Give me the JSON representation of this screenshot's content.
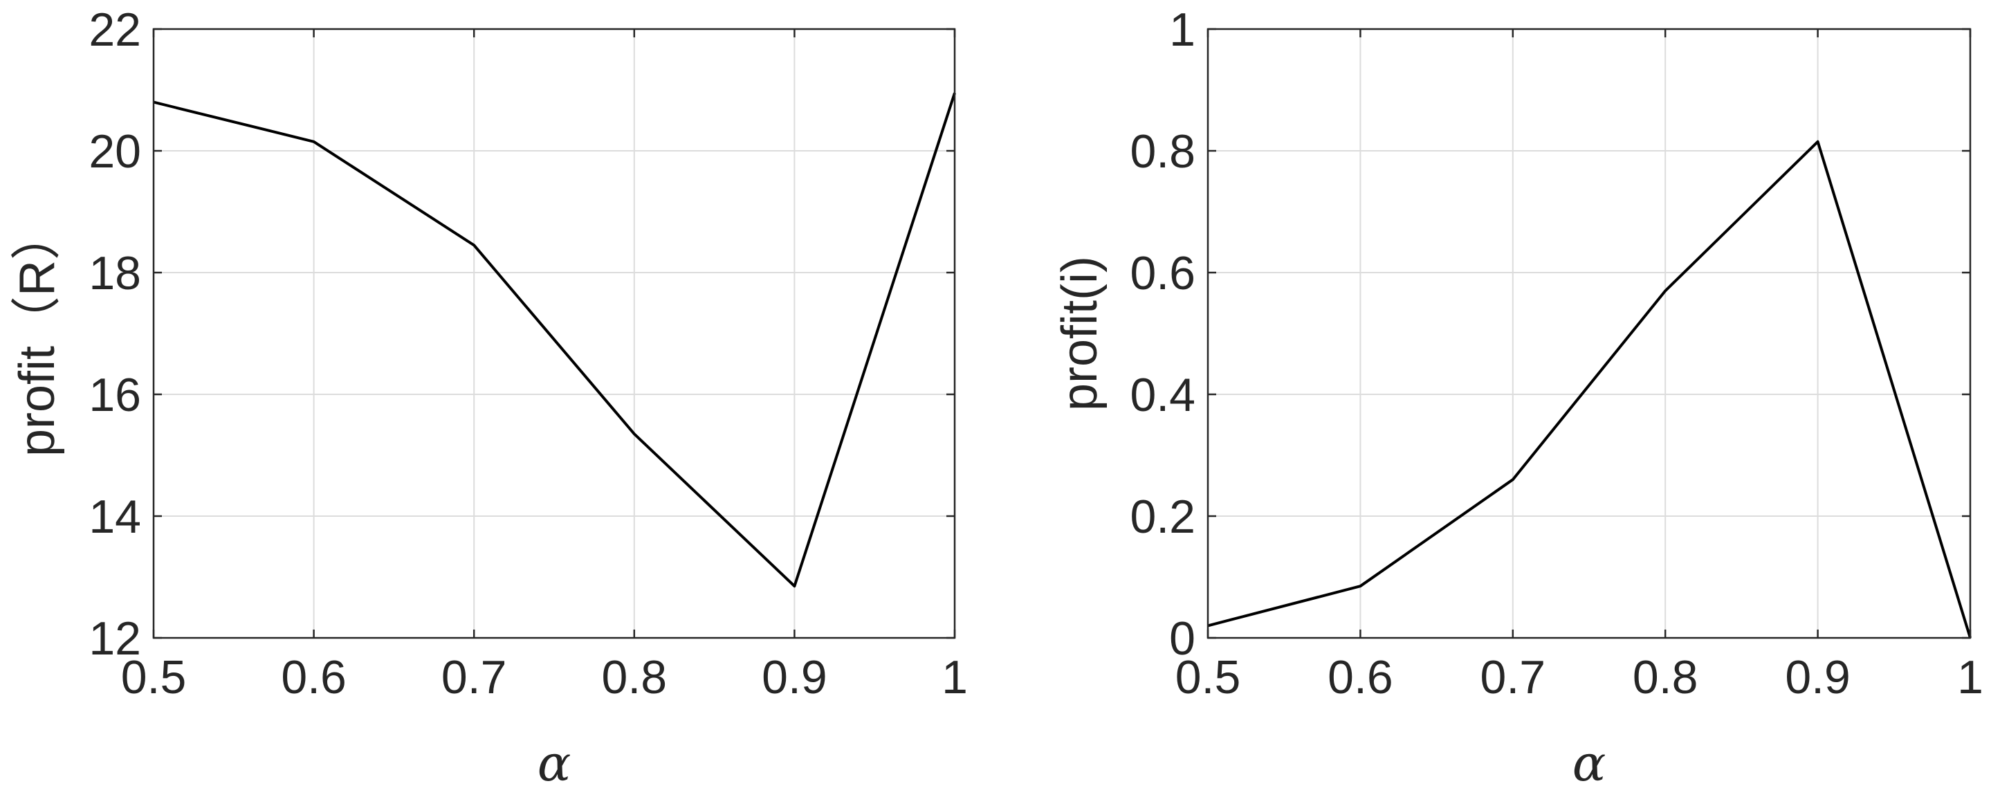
{
  "chart_data": [
    {
      "type": "line",
      "xlabel": "α",
      "ylabel": "profit（R）",
      "xlim": [
        0.5,
        1
      ],
      "ylim": [
        12,
        22
      ],
      "grid": true,
      "x_ticks": [
        0.5,
        0.6,
        0.7,
        0.8,
        0.9,
        1
      ],
      "x_tick_labels": [
        "0.5",
        "0.6",
        "0.7",
        "0.8",
        "0.9",
        "1"
      ],
      "y_ticks": [
        12,
        14,
        16,
        18,
        20,
        22
      ],
      "y_tick_labels": [
        "12",
        "14",
        "16",
        "18",
        "20",
        "22"
      ],
      "series": [
        {
          "x": [
            0.5,
            0.6,
            0.7,
            0.8,
            0.9,
            1.0
          ],
          "y": [
            20.8,
            20.15,
            18.45,
            15.35,
            12.85,
            20.95
          ],
          "color": "#000000"
        }
      ]
    },
    {
      "type": "line",
      "xlabel": "α",
      "ylabel": "profit(i)",
      "xlim": [
        0.5,
        1
      ],
      "ylim": [
        0,
        1
      ],
      "grid": true,
      "x_ticks": [
        0.5,
        0.6,
        0.7,
        0.8,
        0.9,
        1
      ],
      "x_tick_labels": [
        "0.5",
        "0.6",
        "0.7",
        "0.8",
        "0.9",
        "1"
      ],
      "y_ticks": [
        0,
        0.2,
        0.4,
        0.6,
        0.8,
        1
      ],
      "y_tick_labels": [
        "0",
        "0.2",
        "0.4",
        "0.6",
        "0.8",
        "1"
      ],
      "series": [
        {
          "x": [
            0.5,
            0.6,
            0.7,
            0.8,
            0.9,
            1.0
          ],
          "y": [
            0.02,
            0.085,
            0.26,
            0.57,
            0.815,
            0.0
          ],
          "color": "#000000"
        }
      ]
    }
  ]
}
